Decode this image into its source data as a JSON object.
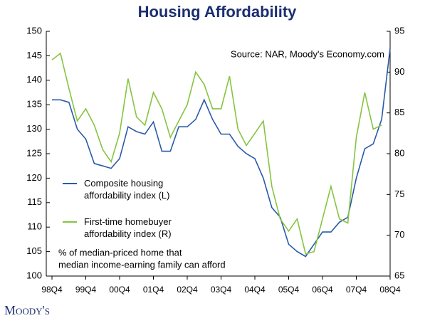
{
  "chart_data": {
    "type": "line",
    "title": "Housing Affordability",
    "source": "Source: NAR, Moody's Economy.com",
    "note": [
      "% of median-priced home that",
      "median income-earning family can afford"
    ],
    "logo": "Moody's",
    "categories": [
      "98Q4",
      null,
      null,
      null,
      "99Q4",
      null,
      null,
      null,
      "00Q4",
      null,
      null,
      null,
      "01Q4",
      null,
      null,
      null,
      "02Q4",
      null,
      null,
      null,
      "03Q4",
      null,
      null,
      null,
      "04Q4",
      null,
      null,
      null,
      "05Q4",
      null,
      null,
      null,
      "06Q4",
      null,
      null,
      null,
      "07Q4",
      null,
      null,
      null,
      "08Q4"
    ],
    "ylim": [
      100,
      150
    ],
    "yticks": [
      100,
      105,
      110,
      115,
      120,
      125,
      130,
      135,
      140,
      145,
      150
    ],
    "y2lim": [
      65,
      95
    ],
    "y2ticks": [
      65,
      70,
      75,
      80,
      85,
      90,
      95
    ],
    "series": [
      {
        "name": "Composite housing\naffordability index (L)",
        "color": "#2a5aa8",
        "values": [
          136,
          136,
          135.5,
          130,
          128,
          123,
          122.5,
          122,
          124,
          130.5,
          129.5,
          129,
          131.5,
          125.5,
          125.5,
          130.5,
          130.5,
          132,
          136,
          132,
          129,
          129,
          126.5,
          125,
          124,
          120,
          114,
          112,
          106.5,
          105,
          104,
          106.5,
          109,
          109,
          111,
          112,
          120,
          126,
          127,
          132,
          146.5
        ]
      },
      {
        "name": "First-time homebuyer\naffordability index (R)",
        "color": "#86c440",
        "axis": "y2",
        "values": [
          91.5,
          92.3,
          88,
          84,
          85.5,
          83.5,
          80.5,
          79,
          82.5,
          89.2,
          84.5,
          83.5,
          87.5,
          85.5,
          82,
          84,
          86,
          90,
          88.5,
          85.5,
          85.5,
          89.5,
          83,
          81,
          82.5,
          84,
          76,
          72,
          70.5,
          72,
          67.7,
          68,
          72,
          76,
          72,
          71.5,
          82,
          87.5,
          83,
          83.5,
          null
        ]
      }
    ]
  }
}
